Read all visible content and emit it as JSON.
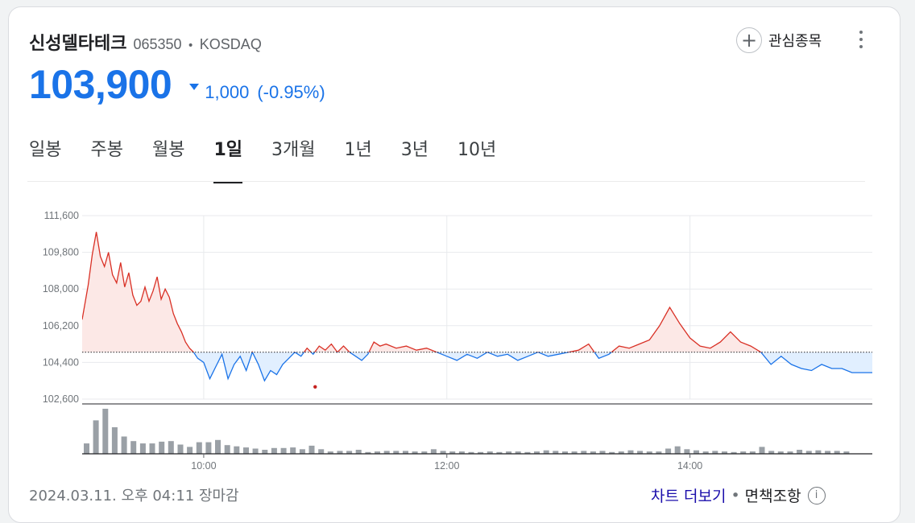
{
  "stock": {
    "name": "신성델타테크",
    "code": "065350",
    "separator": "•",
    "exchange": "KOSDAQ",
    "price": "103,900",
    "direction": "down",
    "change": "1,000",
    "change_pct": "(-0.95%)",
    "color_down": "#1a73e8",
    "color_up": "#d93025"
  },
  "actions": {
    "watch_label": "관심종목",
    "plus_icon": "+"
  },
  "tabs": [
    {
      "label": "일봉"
    },
    {
      "label": "주봉"
    },
    {
      "label": "월봉"
    },
    {
      "label": "1일"
    },
    {
      "label": "3개월"
    },
    {
      "label": "1년"
    },
    {
      "label": "3년"
    },
    {
      "label": "10년"
    }
  ],
  "active_tab": "1일",
  "footer": {
    "timestamp": "2024.03.11. 오후 04:11 장마감",
    "chart_link": "차트 더보기",
    "separator": "•",
    "disclaimer": "면책조항",
    "info_icon": "i"
  },
  "chart_data": {
    "type": "area",
    "reference_price": 104900,
    "ylim": [
      102600,
      111600
    ],
    "yticks": [
      111600,
      109800,
      108000,
      106200,
      104400,
      102600
    ],
    "ytick_labels": [
      "111,600",
      "109,800",
      "108,000",
      "106,200",
      "104,400",
      "102,600"
    ],
    "xlim": [
      "09:00",
      "15:30"
    ],
    "xtick_labels": [
      "10:00",
      "12:00",
      "14:00"
    ],
    "grid": true,
    "up_color": "#d93025",
    "down_color": "#1a73e8",
    "series": [
      {
        "x": "09:00",
        "y": 106500
      },
      {
        "x": "09:03",
        "y": 108200
      },
      {
        "x": "09:05",
        "y": 109700
      },
      {
        "x": "09:07",
        "y": 110800
      },
      {
        "x": "09:09",
        "y": 109600
      },
      {
        "x": "09:11",
        "y": 109100
      },
      {
        "x": "09:13",
        "y": 109800
      },
      {
        "x": "09:15",
        "y": 108700
      },
      {
        "x": "09:17",
        "y": 108300
      },
      {
        "x": "09:19",
        "y": 109300
      },
      {
        "x": "09:21",
        "y": 108100
      },
      {
        "x": "09:23",
        "y": 108800
      },
      {
        "x": "09:25",
        "y": 107700
      },
      {
        "x": "09:27",
        "y": 107200
      },
      {
        "x": "09:29",
        "y": 107400
      },
      {
        "x": "09:31",
        "y": 108100
      },
      {
        "x": "09:33",
        "y": 107400
      },
      {
        "x": "09:35",
        "y": 107900
      },
      {
        "x": "09:37",
        "y": 108600
      },
      {
        "x": "09:39",
        "y": 107500
      },
      {
        "x": "09:41",
        "y": 108000
      },
      {
        "x": "09:43",
        "y": 107600
      },
      {
        "x": "09:45",
        "y": 106800
      },
      {
        "x": "09:47",
        "y": 106300
      },
      {
        "x": "09:49",
        "y": 105900
      },
      {
        "x": "09:51",
        "y": 105400
      },
      {
        "x": "09:53",
        "y": 105100
      },
      {
        "x": "09:55",
        "y": 104900
      },
      {
        "x": "09:57",
        "y": 104600
      },
      {
        "x": "10:00",
        "y": 104400
      },
      {
        "x": "10:03",
        "y": 103600
      },
      {
        "x": "10:06",
        "y": 104200
      },
      {
        "x": "10:09",
        "y": 104800
      },
      {
        "x": "10:12",
        "y": 103600
      },
      {
        "x": "10:15",
        "y": 104300
      },
      {
        "x": "10:18",
        "y": 104700
      },
      {
        "x": "10:21",
        "y": 104000
      },
      {
        "x": "10:24",
        "y": 104900
      },
      {
        "x": "10:27",
        "y": 104300
      },
      {
        "x": "10:30",
        "y": 103500
      },
      {
        "x": "10:33",
        "y": 104000
      },
      {
        "x": "10:36",
        "y": 103800
      },
      {
        "x": "10:39",
        "y": 104300
      },
      {
        "x": "10:42",
        "y": 104600
      },
      {
        "x": "10:45",
        "y": 104900
      },
      {
        "x": "10:48",
        "y": 104700
      },
      {
        "x": "10:51",
        "y": 105100
      },
      {
        "x": "10:54",
        "y": 104800
      },
      {
        "x": "10:57",
        "y": 105200
      },
      {
        "x": "11:00",
        "y": 105000
      },
      {
        "x": "11:03",
        "y": 105300
      },
      {
        "x": "11:06",
        "y": 104900
      },
      {
        "x": "11:09",
        "y": 105200
      },
      {
        "x": "11:12",
        "y": 104900
      },
      {
        "x": "11:15",
        "y": 104700
      },
      {
        "x": "11:18",
        "y": 104500
      },
      {
        "x": "11:21",
        "y": 104800
      },
      {
        "x": "11:24",
        "y": 105400
      },
      {
        "x": "11:27",
        "y": 105200
      },
      {
        "x": "11:30",
        "y": 105300
      },
      {
        "x": "11:35",
        "y": 105100
      },
      {
        "x": "11:40",
        "y": 105200
      },
      {
        "x": "11:45",
        "y": 105000
      },
      {
        "x": "11:50",
        "y": 105100
      },
      {
        "x": "11:55",
        "y": 104900
      },
      {
        "x": "12:00",
        "y": 104700
      },
      {
        "x": "12:05",
        "y": 104500
      },
      {
        "x": "12:10",
        "y": 104800
      },
      {
        "x": "12:15",
        "y": 104600
      },
      {
        "x": "12:20",
        "y": 104900
      },
      {
        "x": "12:25",
        "y": 104700
      },
      {
        "x": "12:30",
        "y": 104800
      },
      {
        "x": "12:35",
        "y": 104500
      },
      {
        "x": "12:40",
        "y": 104700
      },
      {
        "x": "12:45",
        "y": 104900
      },
      {
        "x": "12:50",
        "y": 104700
      },
      {
        "x": "12:55",
        "y": 104800
      },
      {
        "x": "13:00",
        "y": 104900
      },
      {
        "x": "13:05",
        "y": 105000
      },
      {
        "x": "13:10",
        "y": 105300
      },
      {
        "x": "13:15",
        "y": 104600
      },
      {
        "x": "13:20",
        "y": 104800
      },
      {
        "x": "13:25",
        "y": 105200
      },
      {
        "x": "13:30",
        "y": 105100
      },
      {
        "x": "13:35",
        "y": 105300
      },
      {
        "x": "13:40",
        "y": 105500
      },
      {
        "x": "13:45",
        "y": 106200
      },
      {
        "x": "13:50",
        "y": 107100
      },
      {
        "x": "13:55",
        "y": 106300
      },
      {
        "x": "14:00",
        "y": 105600
      },
      {
        "x": "14:05",
        "y": 105200
      },
      {
        "x": "14:10",
        "y": 105100
      },
      {
        "x": "14:15",
        "y": 105400
      },
      {
        "x": "14:20",
        "y": 105900
      },
      {
        "x": "14:25",
        "y": 105400
      },
      {
        "x": "14:30",
        "y": 105200
      },
      {
        "x": "14:35",
        "y": 104900
      },
      {
        "x": "14:40",
        "y": 104300
      },
      {
        "x": "14:45",
        "y": 104700
      },
      {
        "x": "14:50",
        "y": 104300
      },
      {
        "x": "14:55",
        "y": 104100
      },
      {
        "x": "15:00",
        "y": 104000
      },
      {
        "x": "15:05",
        "y": 104300
      },
      {
        "x": "15:10",
        "y": 104100
      },
      {
        "x": "15:15",
        "y": 104100
      },
      {
        "x": "15:20",
        "y": 103900
      },
      {
        "x": "15:30",
        "y": 103900
      }
    ],
    "markers": [
      {
        "x": "10:55",
        "y": 103200,
        "color": "#c5221f"
      }
    ],
    "volume": [
      18,
      58,
      78,
      46,
      30,
      22,
      18,
      18,
      21,
      22,
      16,
      12,
      20,
      20,
      24,
      15,
      13,
      11,
      9,
      7,
      10,
      10,
      11,
      8,
      14,
      8,
      4,
      5,
      5,
      7,
      3,
      4,
      5,
      5,
      5,
      4,
      4,
      8,
      5,
      4,
      4,
      3,
      3,
      4,
      3,
      4,
      4,
      3,
      4,
      6,
      5,
      4,
      4,
      5,
      4,
      5,
      3,
      4,
      6,
      5,
      4,
      4,
      9,
      13,
      8,
      6,
      4,
      5,
      4,
      3,
      4,
      4,
      12,
      5,
      4,
      4,
      7,
      5,
      6,
      5,
      5,
      4
    ]
  }
}
